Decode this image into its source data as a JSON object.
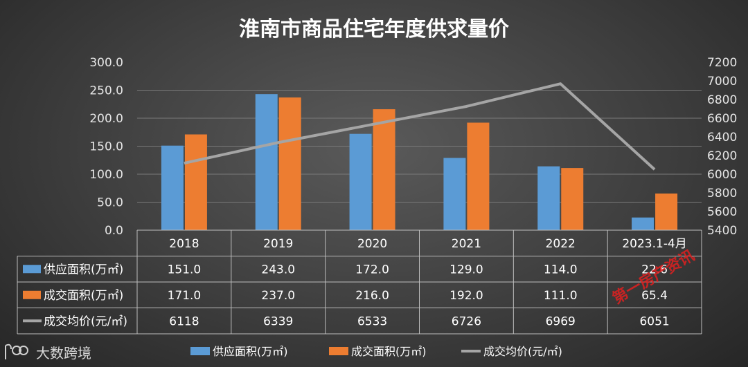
{
  "chart_data": {
    "type": "bar",
    "title": "淮南市商品住宅年度供求量价",
    "categories": [
      "2018",
      "2019",
      "2020",
      "2021",
      "2022",
      "2023.1-4月"
    ],
    "y_left": {
      "ticks": [
        "300.0",
        "250.0",
        "200.0",
        "150.0",
        "100.0",
        "50.0",
        "0.0"
      ],
      "ylim": [
        0,
        300
      ]
    },
    "y_right": {
      "ticks": [
        "7200",
        "7000",
        "6800",
        "6600",
        "6400",
        "6200",
        "6000",
        "5800",
        "5600",
        "5400"
      ],
      "ylim": [
        5400,
        7200
      ]
    },
    "series": [
      {
        "name": "供应面积(万㎡)",
        "type": "bar",
        "axis": "left",
        "color": "#5b9bd5",
        "values": [
          151.0,
          243.0,
          172.0,
          129.0,
          114.0,
          22.6
        ],
        "labels": [
          "151.0",
          "243.0",
          "172.0",
          "129.0",
          "114.0",
          "22.6"
        ]
      },
      {
        "name": "成交面积(万㎡)",
        "type": "bar",
        "axis": "left",
        "color": "#ed7d31",
        "values": [
          171.0,
          237.0,
          216.0,
          192.0,
          111.0,
          65.4
        ],
        "labels": [
          "171.0",
          "237.0",
          "216.0",
          "192.0",
          "111.0",
          "65.4"
        ]
      },
      {
        "name": "成交均价(元/㎡)",
        "type": "line",
        "axis": "right",
        "color": "#a5a5a5",
        "values": [
          6118,
          6339,
          6533,
          6726,
          6969,
          6051
        ],
        "labels": [
          "6118",
          "6339",
          "6533",
          "6726",
          "6969",
          "6051"
        ]
      }
    ],
    "legend_position": "bottom",
    "data_table": true
  },
  "watermark": {
    "logo_text": "大数跨境",
    "stamp_text": "第一房产资讯"
  }
}
